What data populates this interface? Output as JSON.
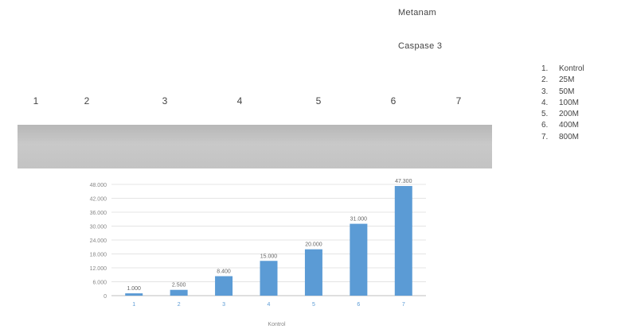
{
  "figure": {
    "method_label": "Metanam",
    "target_label": "Caspase 3"
  },
  "lanes": [
    "1",
    "2",
    "3",
    "4",
    "5",
    "6",
    "7"
  ],
  "legend": [
    {
      "num": "1.",
      "label": "Kontrol"
    },
    {
      "num": "2.",
      "label": "25M"
    },
    {
      "num": "3.",
      "label": "50M"
    },
    {
      "num": "4.",
      "label": "100M"
    },
    {
      "num": "5.",
      "label": "200M"
    },
    {
      "num": "6.",
      "label": "400M"
    },
    {
      "num": "7.",
      "label": "800M"
    }
  ],
  "colors": {
    "bar": "#5b9bd5",
    "band": "#1a1a1a",
    "blot_background": "#c2c2c2",
    "gridline": "#e4e4e4"
  },
  "chart_data": {
    "type": "bar",
    "categories": [
      "1",
      "2",
      "3",
      "4",
      "5",
      "6",
      "7"
    ],
    "values": [
      1000,
      2500,
      8400,
      15000,
      20000,
      31000,
      47300
    ],
    "data_labels": [
      "1.000",
      "2.500",
      "8.400",
      "15.000",
      "20.000",
      "31.000",
      "47.300"
    ],
    "ytick_labels": [
      "0",
      "6.000",
      "12.000",
      "18.000",
      "24.000",
      "30.000",
      "36.000",
      "42.000",
      "48.000"
    ],
    "ylim": [
      0,
      48000
    ],
    "title": "",
    "xlabel": "Kontrol",
    "ylabel": "",
    "grid": true,
    "legend": "none"
  }
}
